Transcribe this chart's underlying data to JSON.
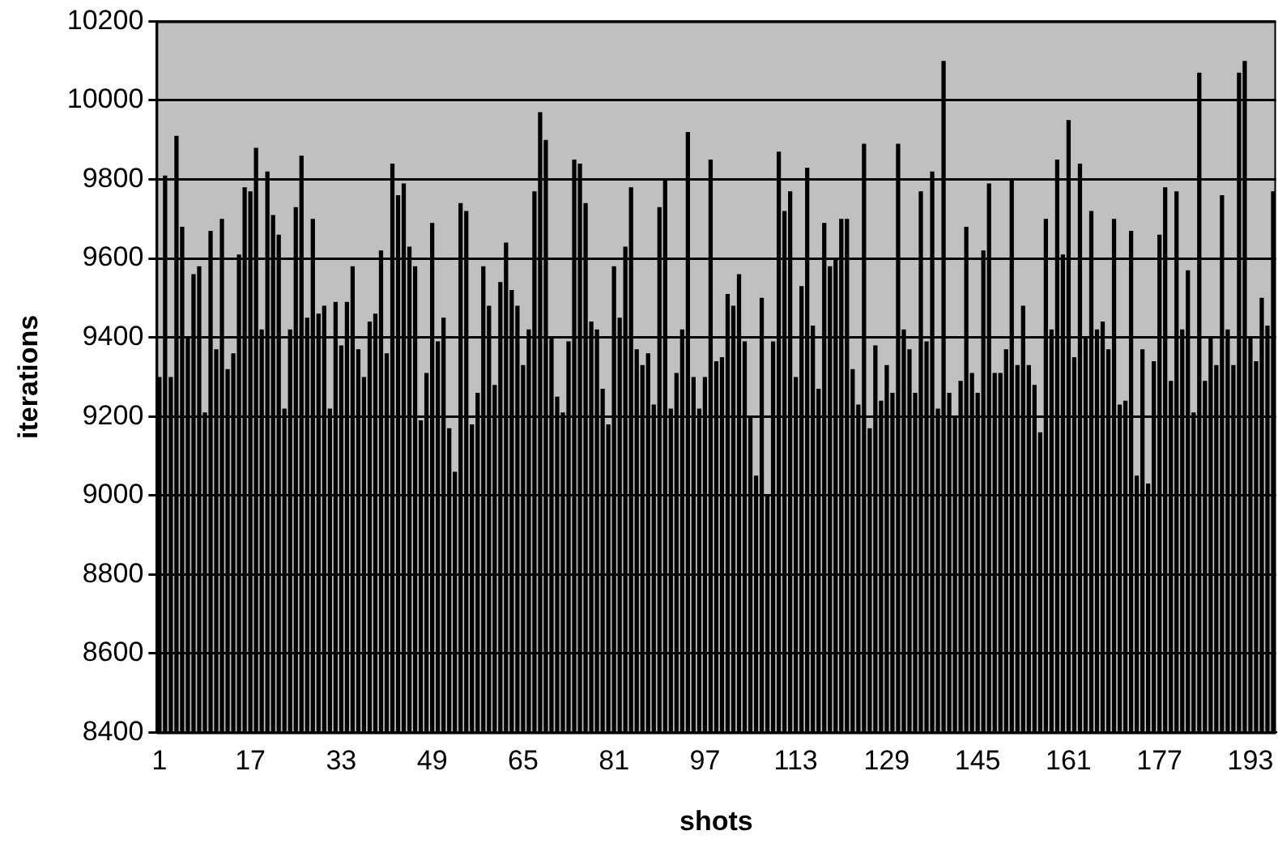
{
  "chart_data": {
    "type": "bar",
    "xlabel": "shots",
    "ylabel": "iterations",
    "categories": [
      "1",
      null,
      null,
      null,
      null,
      null,
      null,
      null,
      null,
      null,
      null,
      null,
      null,
      null,
      null,
      null,
      "17",
      null,
      null,
      null,
      null,
      null,
      null,
      null,
      null,
      null,
      null,
      null,
      null,
      null,
      null,
      null,
      "33",
      null,
      null,
      null,
      null,
      null,
      null,
      null,
      null,
      null,
      null,
      null,
      null,
      null,
      null,
      null,
      "49",
      null,
      null,
      null,
      null,
      null,
      null,
      null,
      null,
      null,
      null,
      null,
      null,
      null,
      null,
      null,
      "65",
      null,
      null,
      null,
      null,
      null,
      null,
      null,
      null,
      null,
      null,
      null,
      null,
      null,
      null,
      null,
      "81",
      null,
      null,
      null,
      null,
      null,
      null,
      null,
      null,
      null,
      null,
      null,
      null,
      null,
      null,
      null,
      "97",
      null,
      null,
      null,
      null,
      null,
      null,
      null,
      null,
      null,
      null,
      null,
      null,
      null,
      null,
      null,
      "113",
      null,
      null,
      null,
      null,
      null,
      null,
      null,
      null,
      null,
      null,
      null,
      null,
      null,
      null,
      null,
      "129",
      null,
      null,
      null,
      null,
      null,
      null,
      null,
      null,
      null,
      null,
      null,
      null,
      null,
      null,
      null,
      "145",
      null,
      null,
      null,
      null,
      null,
      null,
      null,
      null,
      null,
      null,
      null,
      null,
      null,
      null,
      null,
      "161",
      null,
      null,
      null,
      null,
      null,
      null,
      null,
      null,
      null,
      null,
      null,
      null,
      null,
      null,
      null,
      "177",
      null,
      null,
      null,
      null,
      null,
      null,
      null,
      null,
      null,
      null,
      null,
      null,
      null,
      null,
      null,
      "193",
      null,
      null,
      null,
      null
    ],
    "values": [
      9300,
      9810,
      9300,
      9910,
      9680,
      9400,
      9560,
      9580,
      9210,
      9670,
      9370,
      9700,
      9320,
      9360,
      9610,
      9780,
      9770,
      9880,
      9420,
      9820,
      9710,
      9660,
      9220,
      9420,
      9730,
      9860,
      9450,
      9700,
      9460,
      9480,
      9220,
      9490,
      9380,
      9490,
      9580,
      9370,
      9300,
      9440,
      9460,
      9620,
      9360,
      9840,
      9760,
      9790,
      9630,
      9580,
      9190,
      9310,
      9690,
      9390,
      9450,
      9170,
      9060,
      9740,
      9720,
      9180,
      9260,
      9580,
      9480,
      9280,
      9540,
      9640,
      9520,
      9480,
      9330,
      9420,
      9770,
      9970,
      9900,
      9400,
      9250,
      9210,
      9390,
      9850,
      9840,
      9740,
      9440,
      9420,
      9270,
      9180,
      9580,
      9450,
      9630,
      9780,
      9370,
      9330,
      9360,
      9230,
      9730,
      9800,
      9220,
      9310,
      9420,
      9920,
      9300,
      9220,
      9300,
      9850,
      9340,
      9350,
      9510,
      9480,
      9560,
      9390,
      9200,
      9050,
      9500,
      9000,
      9390,
      9870,
      9720,
      9770,
      9300,
      9530,
      9830,
      9430,
      9270,
      9690,
      9580,
      9600,
      9700,
      9700,
      9320,
      9230,
      9890,
      9170,
      9380,
      9240,
      9330,
      9260,
      9890,
      9420,
      9370,
      9260,
      9770,
      9390,
      9820,
      9220,
      10100,
      9260,
      9200,
      9290,
      9680,
      9310,
      9260,
      9620,
      9790,
      9310,
      9310,
      9370,
      9800,
      9330,
      9480,
      9330,
      9280,
      9160,
      9700,
      9420,
      9850,
      9610,
      9950,
      9350,
      9840,
      9400,
      9720,
      9420,
      9440,
      9370,
      9700,
      9230,
      9240,
      9670,
      9050,
      9370,
      9030,
      9340,
      9660,
      9780,
      9290,
      9770,
      9420,
      9570,
      9210,
      10070,
      9290,
      9400,
      9330,
      9760,
      9420,
      9330,
      10070,
      10100,
      9400,
      9340,
      9500,
      9430,
      9770
    ],
    "color": "#000000",
    "ylim": [
      8400,
      10200
    ],
    "yticks": [
      8400,
      8600,
      8800,
      9000,
      9200,
      9400,
      9600,
      9800,
      10000,
      10200
    ],
    "grid": "y",
    "legend": false
  }
}
